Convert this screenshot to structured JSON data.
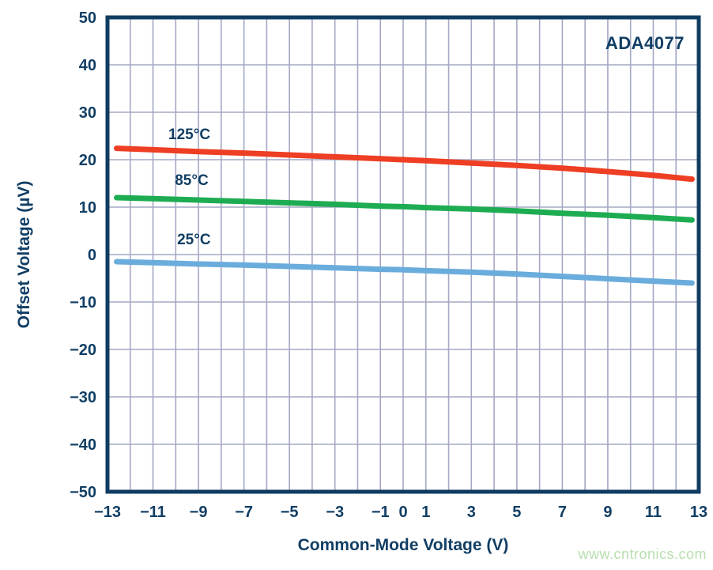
{
  "watermark": "www.cntronics.com",
  "colors": {
    "text_navy": "#113e64",
    "border_navy": "#0f3c61",
    "gridline": "#a4a8c4",
    "background": "#ffffff",
    "watermark_green": "#b9dfb0",
    "series_red": "#ee3e23",
    "series_green": "#1eac52",
    "series_blue": "#6aacdc"
  },
  "chart_data": {
    "type": "line",
    "title": "",
    "annotation": "ADA4077",
    "xlabel": "Common-Mode Voltage (V)",
    "ylabel": "Offset Voltage (µV)",
    "xlim": [
      -13,
      13
    ],
    "ylim": [
      -50,
      50
    ],
    "grid": true,
    "x_grid_step_volts": 1,
    "y_grid_step_microvolts": 10,
    "legend_position": "inline-curve-labels",
    "x_tick_values": [
      -13,
      -11,
      -9,
      -7,
      -5,
      -3,
      -1,
      0,
      1,
      3,
      5,
      7,
      9,
      11,
      13
    ],
    "x_tick_labels": [
      "−13",
      "−11",
      "−9",
      "−7",
      "−5",
      "−3",
      "−1",
      "0",
      "1",
      "3",
      "5",
      "7",
      "9",
      "11",
      "13"
    ],
    "y_tick_values": [
      50,
      40,
      30,
      20,
      10,
      0,
      -10,
      -20,
      -30,
      -40,
      -50
    ],
    "y_tick_labels": [
      "50",
      "40",
      "30",
      "20",
      "10",
      "0",
      "−10",
      "−20",
      "−30",
      "−40",
      "−50"
    ],
    "x": [
      -12.6,
      -11,
      -9,
      -7,
      -5,
      -3,
      -1,
      0,
      1,
      3,
      5,
      7,
      9,
      11,
      12.7
    ],
    "series": [
      {
        "name": "125C",
        "label": "125°C",
        "color": "#ee3e23",
        "label_x": -9.4,
        "label_y": 25.5,
        "values": [
          22.4,
          22.1,
          21.7,
          21.4,
          21.0,
          20.6,
          20.2,
          20.0,
          19.8,
          19.3,
          18.8,
          18.2,
          17.5,
          16.7,
          15.9
        ]
      },
      {
        "name": "85C",
        "label": "85°C",
        "color": "#1eac52",
        "label_x": -9.3,
        "label_y": 15.8,
        "values": [
          12.0,
          11.8,
          11.5,
          11.2,
          10.9,
          10.6,
          10.2,
          10.1,
          9.9,
          9.6,
          9.2,
          8.7,
          8.3,
          7.8,
          7.3
        ]
      },
      {
        "name": "25C",
        "label": "25°C",
        "color": "#6aacdc",
        "label_x": -9.2,
        "label_y": 3.3,
        "values": [
          -1.5,
          -1.7,
          -2.0,
          -2.2,
          -2.5,
          -2.8,
          -3.1,
          -3.2,
          -3.4,
          -3.7,
          -4.1,
          -4.6,
          -5.1,
          -5.6,
          -6.0
        ]
      }
    ]
  }
}
